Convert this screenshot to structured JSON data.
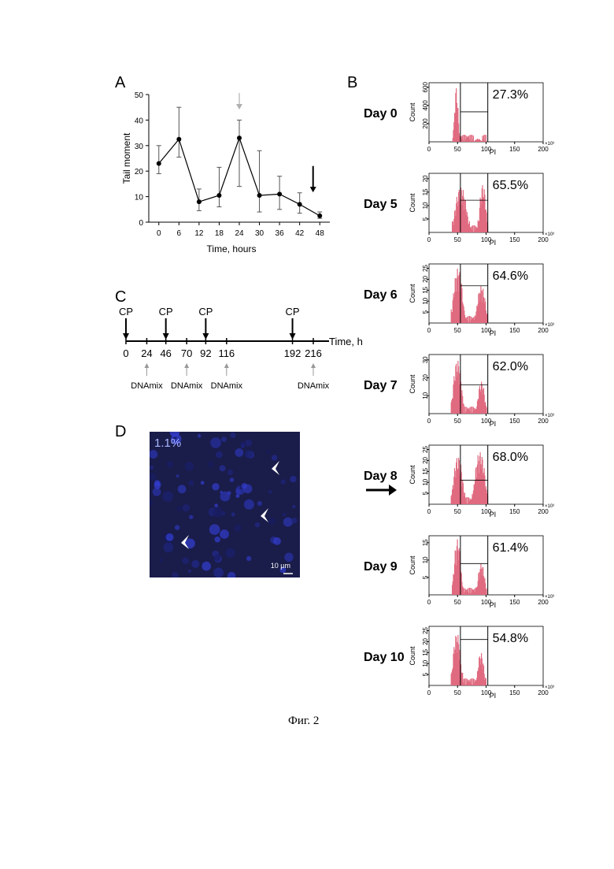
{
  "panels": {
    "a": "A",
    "b": "B",
    "c": "C",
    "d": "D"
  },
  "caption": "Фиг. 2",
  "chart_data": [
    {
      "type": "line",
      "panel": "A",
      "xlabel": "Time, hours",
      "ylabel": "Tail moment",
      "x": [
        0,
        6,
        12,
        18,
        24,
        30,
        36,
        42,
        48
      ],
      "y": [
        23,
        32.5,
        8,
        10.5,
        33,
        10.5,
        11,
        7,
        2.5
      ],
      "err_low": [
        19,
        25.5,
        4.5,
        6,
        14,
        4,
        5,
        3.5,
        1.5
      ],
      "err_high": [
        30,
        45,
        13,
        21.5,
        40,
        28,
        18,
        11.5,
        4
      ],
      "xticks": [
        0,
        6,
        12,
        18,
        24,
        30,
        36,
        42,
        48
      ],
      "yticks": [
        0,
        10,
        20,
        30,
        40,
        50
      ],
      "xlim": [
        -3,
        51
      ],
      "ylim": [
        0,
        50
      ],
      "grid": false,
      "markers": [
        {
          "x": 24,
          "color": "#b0b0b0"
        },
        {
          "x": 46,
          "color": "#000000"
        }
      ]
    },
    {
      "type": "area",
      "panel": "B",
      "xlabel": "PI",
      "ylabel": "Count",
      "xticks": [
        0,
        50,
        100,
        150,
        200
      ],
      "xunit": "×10³",
      "xlim": [
        0,
        200
      ],
      "gate_x": 55,
      "gate_end": 103,
      "histograms": [
        {
          "day": "Day 0",
          "pct": "27.3%",
          "yticks": [
            200,
            400,
            600
          ],
          "ymax": 650,
          "peaks": [
            [
              42,
              52,
              600
            ],
            [
              78,
              92,
              35
            ]
          ],
          "gate_level": 330
        },
        {
          "day": "Day 5",
          "pct": "65.5%",
          "yticks": [
            5,
            10,
            15,
            20
          ],
          "ymax": 22,
          "peaks": [
            [
              40,
              70,
              17
            ],
            [
              85,
              102,
              18
            ]
          ],
          "gate_level": 12
        },
        {
          "day": "Day 6",
          "pct": "64.6%",
          "yticks": [
            5,
            10,
            15,
            20,
            25
          ],
          "ymax": 27,
          "peaks": [
            [
              38,
              62,
              25
            ],
            [
              80,
              102,
              17
            ]
          ],
          "gate_level": 17
        },
        {
          "day": "Day 7",
          "pct": "62.0%",
          "yticks": [
            10,
            20,
            30
          ],
          "ymax": 33,
          "peaks": [
            [
              38,
              60,
              30
            ],
            [
              82,
              100,
              18
            ]
          ],
          "gate_level": 16
        },
        {
          "day": "Day 8",
          "pct": "68.0%",
          "yticks": [
            5,
            10,
            15,
            20,
            25
          ],
          "ymax": 27,
          "peaks": [
            [
              38,
              62,
              22
            ],
            [
              75,
              102,
              24
            ]
          ],
          "gate_level": 11
        },
        {
          "day": "Day 9",
          "pct": "61.4%",
          "yticks": [
            5,
            10,
            15
          ],
          "ymax": 17,
          "peaks": [
            [
              40,
              58,
              16
            ],
            [
              82,
              100,
              9
            ]
          ],
          "gate_level": 9
        },
        {
          "day": "Day 10",
          "pct": "54.8%",
          "yticks": [
            5,
            10,
            15,
            20,
            25
          ],
          "ymax": 27,
          "peaks": [
            [
              38,
              58,
              24
            ],
            [
              82,
              98,
              15
            ]
          ],
          "gate_level": 21
        }
      ]
    }
  ],
  "timeline": {
    "axis_label": "Time, h",
    "ticks": [
      0,
      24,
      46,
      70,
      92,
      116,
      192,
      216
    ],
    "cp_label": "CP",
    "cp_times": [
      0,
      46,
      92,
      192
    ],
    "dna_label": "DNAmix",
    "dna_times": [
      24,
      70,
      116,
      216
    ]
  },
  "micrograph": {
    "pct": "1.1%",
    "scale": "10 µm"
  }
}
